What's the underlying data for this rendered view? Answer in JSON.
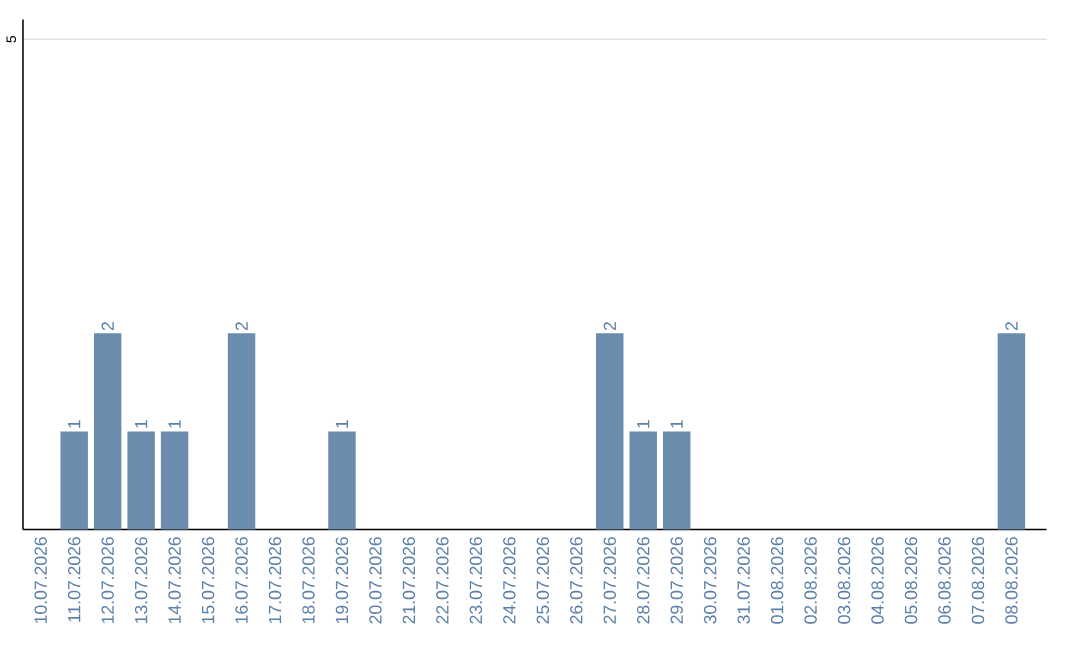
{
  "chart_data": {
    "type": "bar",
    "categories": [
      "10.07.2026",
      "11.07.2026",
      "12.07.2026",
      "13.07.2026",
      "14.07.2026",
      "15.07.2026",
      "16.07.2026",
      "17.07.2026",
      "18.07.2026",
      "19.07.2026",
      "20.07.2026",
      "21.07.2026",
      "22.07.2026",
      "23.07.2026",
      "24.07.2026",
      "25.07.2026",
      "26.07.2026",
      "27.07.2026",
      "28.07.2026",
      "29.07.2026",
      "30.07.2026",
      "31.07.2026",
      "01.08.2026",
      "02.08.2026",
      "03.08.2026",
      "04.08.2026",
      "05.08.2026",
      "06.08.2026",
      "07.08.2026",
      "08.08.2026"
    ],
    "values": [
      0,
      1,
      2,
      1,
      1,
      0,
      2,
      0,
      0,
      1,
      0,
      0,
      0,
      0,
      0,
      0,
      0,
      2,
      1,
      1,
      0,
      0,
      0,
      0,
      0,
      0,
      0,
      0,
      0,
      2
    ],
    "value_labels": [
      null,
      "1",
      "2",
      "1",
      "1",
      null,
      "2",
      null,
      null,
      "1",
      null,
      null,
      null,
      null,
      null,
      null,
      null,
      "2",
      "1",
      "1",
      null,
      null,
      null,
      null,
      null,
      null,
      null,
      null,
      null,
      "2"
    ],
    "color": "#6b8cad",
    "ylim": [
      0,
      5.2
    ],
    "yticks": [
      5
    ],
    "grid": "y",
    "legend": false
  }
}
